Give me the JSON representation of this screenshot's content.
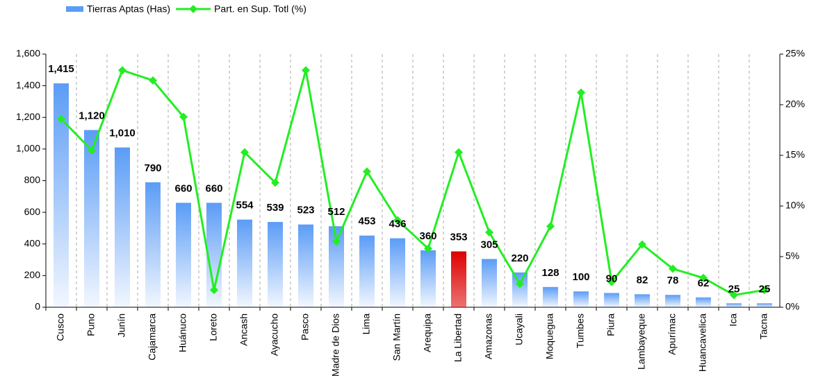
{
  "chart_data": {
    "type": "bar",
    "categories": [
      "Cusco",
      "Puno",
      "Junín",
      "Cajamarca",
      "Huánuco",
      "Loreto",
      "Ancash",
      "Ayacucho",
      "Pasco",
      "Madre de Dios",
      "Lima",
      "San Martín",
      "Arequipa",
      "La Libertad",
      "Amazonas",
      "Ucayali",
      "Moquegua",
      "Tumbes",
      "Piura",
      "Lambayeque",
      "Apurímac",
      "Huancavelica",
      "Ica",
      "Tacna"
    ],
    "series": [
      {
        "name": "Tierras Aptas (Has)",
        "type": "bar",
        "color": "#5b9cf6",
        "colors": [
          "#5b9cf6",
          "#5b9cf6",
          "#5b9cf6",
          "#5b9cf6",
          "#5b9cf6",
          "#5b9cf6",
          "#5b9cf6",
          "#5b9cf6",
          "#5b9cf6",
          "#5b9cf6",
          "#5b9cf6",
          "#5b9cf6",
          "#5b9cf6",
          "#dd0000",
          "#5b9cf6",
          "#5b9cf6",
          "#5b9cf6",
          "#5b9cf6",
          "#5b9cf6",
          "#5b9cf6",
          "#5b9cf6",
          "#5b9cf6",
          "#5b9cf6",
          "#5b9cf6"
        ],
        "values": [
          1415,
          1120,
          1010,
          790,
          660,
          660,
          554,
          539,
          523,
          512,
          453,
          436,
          360,
          353,
          305,
          220,
          128,
          100,
          90,
          82,
          78,
          62,
          25,
          25
        ],
        "value_labels": [
          "1,415",
          "1,120",
          "1,010",
          "790",
          "660",
          "660",
          "554",
          "539",
          "523",
          "512",
          "453",
          "436",
          "360",
          "353",
          "305",
          "220",
          "128",
          "100",
          "90",
          "82",
          "78",
          "62",
          "25",
          "25"
        ]
      },
      {
        "name": "Part. en Sup. Totl (%)",
        "type": "line",
        "axis": "y2",
        "color": "#22ee22",
        "values": [
          18.6,
          15.5,
          23.4,
          22.4,
          18.8,
          1.7,
          15.3,
          12.3,
          23.4,
          6.5,
          13.4,
          8.6,
          5.8,
          15.3,
          7.4,
          2.3,
          8.0,
          21.2,
          2.5,
          6.2,
          3.8,
          2.9,
          1.2,
          1.7
        ]
      }
    ],
    "ylim": [
      0,
      1600
    ],
    "yticks": [
      0,
      200,
      400,
      600,
      {
        "value": 800,
        "label": "800"
      },
      {
        "value": 1000,
        "label": "1,000"
      },
      {
        "value": 1200,
        "label": "1,200"
      },
      {
        "value": 1400,
        "label": "1,400"
      },
      {
        "value": 1600,
        "label": "1,600"
      }
    ],
    "y2lim": [
      0,
      25
    ],
    "y2ticks": [
      {
        "value": 0,
        "label": "0%"
      },
      {
        "value": 5,
        "label": "5%"
      },
      {
        "value": 10,
        "label": "10%"
      },
      {
        "value": 15,
        "label": "15%"
      },
      {
        "value": 20,
        "label": "20%"
      },
      {
        "value": 25,
        "label": "25%"
      }
    ],
    "grid": "vertical-dashed",
    "legend": "top-left"
  }
}
